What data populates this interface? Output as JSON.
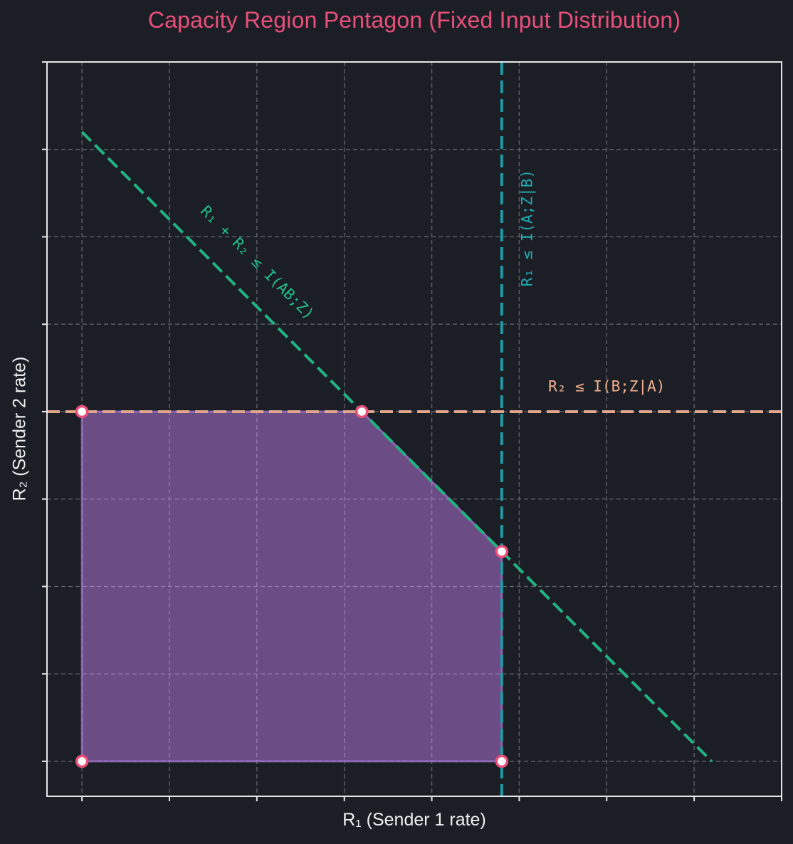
{
  "chart_data": {
    "type": "line",
    "title": "Capacity Region Pentagon (Fixed Input Distribution)",
    "xlabel": "R₁ (Sender 1 rate)",
    "ylabel": "R₂ (Sender 2 rate)",
    "xlim": [
      -0.4,
      8.0
    ],
    "ylim": [
      -0.4,
      8.0
    ],
    "xticks": [
      0,
      1,
      2,
      3,
      4,
      5,
      6,
      7,
      8
    ],
    "yticks": [
      0,
      1,
      2,
      3,
      4,
      5,
      6,
      7,
      8
    ],
    "tick_labels_visible": false,
    "grid": true,
    "legend": null,
    "constraints": {
      "I_A_Z_given_B": 4.8,
      "I_B_Z_given_A": 4.0,
      "I_AB_Z": 7.2
    },
    "region": {
      "name": "Capacity region pentagon",
      "vertices": [
        [
          0,
          0
        ],
        [
          4.8,
          0
        ],
        [
          4.8,
          2.4
        ],
        [
          3.2,
          4.0
        ],
        [
          0,
          4.0
        ]
      ],
      "fill_color": "#6b4c85",
      "edge_color": "#9b6fc4"
    },
    "corner_points": [
      [
        0,
        0
      ],
      [
        4.8,
        0
      ],
      [
        4.8,
        2.4
      ],
      [
        3.2,
        4.0
      ],
      [
        0,
        4.0
      ]
    ],
    "series": [
      {
        "name": "R₁ ≤ I(A;Z|B)",
        "kind": "vline",
        "x": 4.8,
        "style": "dashed",
        "color": "#1f9aa3",
        "label": "R₁ ≤ I(A;Z|B)"
      },
      {
        "name": "R₂ ≤ I(B;Z|A)",
        "kind": "hline",
        "y": 4.0,
        "style": "dashed",
        "color": "#e0a58d",
        "label": "R₂ ≤ I(B;Z|A)"
      },
      {
        "name": "R₁ + R₂ ≤ I(AB;Z)",
        "kind": "line",
        "x": [
          0,
          7.2
        ],
        "y": [
          7.2,
          0
        ],
        "style": "dashed",
        "color": "#22b383",
        "label": "R₁ + R₂ ≤ I(AB;Z)"
      }
    ],
    "annotations": [
      {
        "text": "R₁ + R₂ ≤ I(AB;Z)",
        "x": 2.0,
        "y": 5.7,
        "rotation": 45,
        "color": "#22c08a"
      },
      {
        "text": "R₁ ≤ I(A;Z|B)",
        "x": 5.1,
        "y": 6.1,
        "rotation": 90,
        "color": "#22a9b3"
      },
      {
        "text": "R₂ ≤ I(B;Z|A)",
        "x": 6.0,
        "y": 4.28,
        "rotation": 0,
        "color": "#f0b08f"
      }
    ],
    "marker_style": {
      "face": "#ffffff",
      "edge": "#e8507a"
    }
  },
  "colors": {
    "background": "#1c1e25",
    "axes": "#e6e6e6",
    "grid": "#5e6168",
    "title": "#e8507a",
    "label": "#f0f0f0"
  }
}
